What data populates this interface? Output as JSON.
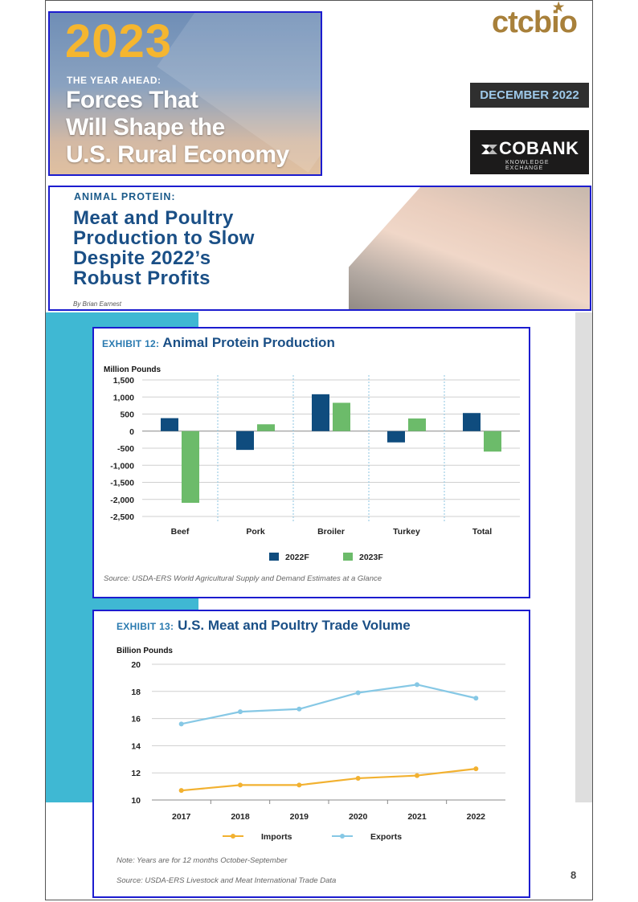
{
  "header": {
    "year": "2023",
    "subtitle": "THE YEAR AHEAD:",
    "title_lines": [
      "Forces That",
      "Will Shape the",
      "U.S. Rural Economy"
    ],
    "brand": "ctcbio",
    "date": "DECEMBER 2022",
    "partner_name": "COBANK",
    "partner_tagline": "KNOWLEDGE EXCHANGE"
  },
  "article": {
    "kicker": "ANIMAL PROTEIN:",
    "headline_lines": [
      "Meat and Poultry",
      "Production to Slow",
      "Despite 2022’s",
      "Robust Profits"
    ],
    "byline": "By Brian Earnest"
  },
  "exhibit12": {
    "label": "EXHIBIT 12:",
    "title": "Animal Protein Production",
    "source": "Source: USDA-ERS World Agricultural Supply and Demand Estimates at a Glance"
  },
  "exhibit13": {
    "label": "EXHIBIT 13:",
    "title": "U.S. Meat and Poultry Trade Volume",
    "note": "Note: Years are for 12 months October-September",
    "source": "Source: USDA-ERS Livestock and Meat International Trade Data"
  },
  "page_number": "8",
  "chart_data": [
    {
      "type": "bar",
      "ylabel": "Million Pounds",
      "categories": [
        "Beef",
        "Pork",
        "Broiler",
        "Turkey",
        "Total"
      ],
      "series": [
        {
          "name": "2022F",
          "color": "#0f4c7e",
          "values": [
            380,
            -550,
            1080,
            -330,
            530
          ]
        },
        {
          "name": "2023F",
          "color": "#6cbb6a",
          "values": [
            -2100,
            200,
            830,
            370,
            -600
          ]
        }
      ],
      "ylim": [
        -2500,
        1500
      ],
      "yticks": [
        "1,500",
        "1,000",
        "500",
        "0",
        "-500",
        "-1,000",
        "-1,500",
        "-2,000",
        "-2,500"
      ],
      "legend": "bottom",
      "grid": true
    },
    {
      "type": "line",
      "ylabel": "Billion Pounds",
      "x": [
        "2017",
        "2018",
        "2019",
        "2020",
        "2021",
        "2022"
      ],
      "series": [
        {
          "name": "Imports",
          "color": "#f2b130",
          "values": [
            10.7,
            11.1,
            11.1,
            11.6,
            11.8,
            12.3
          ]
        },
        {
          "name": "Exports",
          "color": "#86c8e5",
          "values": [
            15.6,
            16.5,
            16.7,
            17.9,
            18.5,
            17.5
          ]
        }
      ],
      "ylim": [
        10,
        20
      ],
      "yticks": [
        "10",
        "12",
        "14",
        "16",
        "18",
        "20"
      ],
      "legend": "bottom",
      "grid": true
    }
  ]
}
